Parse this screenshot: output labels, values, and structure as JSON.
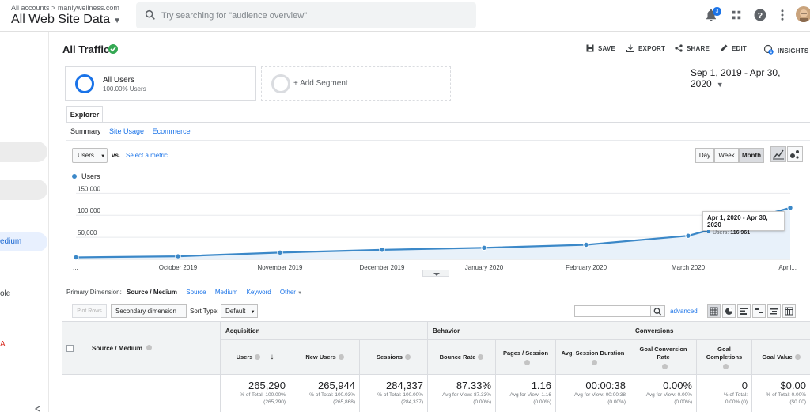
{
  "topbar": {
    "crumb_all": "All accounts",
    "crumb_sep": ">",
    "crumb_site": "manlywellness.com",
    "property": "All Web Site Data",
    "search_placeholder": "Try searching for \"audience overview\"",
    "notifications_count": "3"
  },
  "sidebar": {
    "active_label": "edium",
    "label_ole": "ole",
    "label_a": "A"
  },
  "report": {
    "title": "All Traffic",
    "actions": [
      "SAVE",
      "EXPORT",
      "SHARE",
      "EDIT",
      "INSIGHTS"
    ],
    "insights_count": "4"
  },
  "segments": {
    "seg1_name": "All Users",
    "seg1_pct": "100.00% Users",
    "add_segment": "+ Add Segment"
  },
  "date_range": "Sep 1, 2019 - Apr 30, 2020",
  "tabs": {
    "explorer": "Explorer",
    "subtabs": [
      "Summary",
      "Site Usage",
      "Ecommerce"
    ]
  },
  "chart_controls": {
    "metric": "Users",
    "vs": "vs.",
    "select_metric": "Select a metric",
    "granularity": [
      "Day",
      "Week",
      "Month"
    ],
    "active_granularity": "Month"
  },
  "chart_data": {
    "type": "area",
    "series": [
      {
        "name": "Users",
        "values": [
          4500,
          7000,
          15500,
          21800,
          26300,
          33200,
          53500,
          116961
        ]
      }
    ],
    "x_labels": [
      "...",
      "October 2019",
      "November 2019",
      "December 2019",
      "January 2020",
      "February 2020",
      "March 2020",
      "April..."
    ],
    "y_ticks": [
      "150,000",
      "100,000",
      "50,000"
    ],
    "ylim": [
      0,
      165000
    ],
    "color": "#3b88c8",
    "grid": true
  },
  "tooltip": {
    "date": "Apr 1, 2020 - Apr 30, 2020",
    "metric": "Users:",
    "value": "116,961"
  },
  "primary_dimension": {
    "label": "Primary Dimension:",
    "current": "Source / Medium",
    "links": [
      "Source",
      "Medium",
      "Keyword"
    ],
    "other": "Other"
  },
  "table_controls": {
    "plot_rows": "Plot Rows",
    "secondary_dim": "Secondary dimension",
    "sort_label": "Sort Type:",
    "sort_value": "Default",
    "advanced": "advanced"
  },
  "table": {
    "dim_header": "Source / Medium",
    "groups": [
      "Acquisition",
      "Behavior",
      "Conversions"
    ],
    "columns": [
      "Users",
      "New Users",
      "Sessions",
      "Bounce Rate",
      "Pages / Session",
      "Avg. Session Duration",
      "Goal Conversion Rate",
      "Goal Completions",
      "Goal Value"
    ],
    "totals": [
      {
        "value": "265,290",
        "l1": "% of Total: 100.00%",
        "l2": "(265,290)"
      },
      {
        "value": "265,944",
        "l1": "% of Total: 100.03%",
        "l2": "(265,868)"
      },
      {
        "value": "284,337",
        "l1": "% of Total: 100.00%",
        "l2": "(284,337)"
      },
      {
        "value": "87.33%",
        "l1": "Avg for View: 87.33%",
        "l2": "(0.00%)"
      },
      {
        "value": "1.16",
        "l1": "Avg for View: 1.16",
        "l2": "(0.00%)"
      },
      {
        "value": "00:00:38",
        "l1": "Avg for View: 00:00:38",
        "l2": "(0.00%)"
      },
      {
        "value": "0.00%",
        "l1": "Avg for View: 0.00%",
        "l2": "(0.00%)"
      },
      {
        "value": "0",
        "l1": "% of Total:",
        "l2": "0.00% (0)"
      },
      {
        "value": "$0.00",
        "l1": "% of Total: 0.00%",
        "l2": "($0.00)"
      }
    ]
  }
}
